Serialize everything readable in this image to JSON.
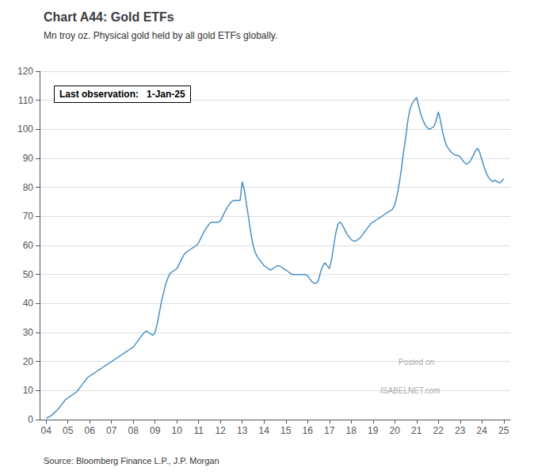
{
  "chart_data": {
    "type": "line",
    "title": "Chart A44: Gold ETFs",
    "subtitle": "Mn troy oz. Physical gold held by all gold ETFs globally.",
    "annotation": "Last observation:   1-Jan-25",
    "source": "Source: Bloomberg Finance L.P., J.P. Morgan",
    "watermark": [
      "Posted on",
      "ISABELNET.com"
    ],
    "color": "#4a90c4",
    "grid": true,
    "xlim": [
      2003.7,
      2025.3
    ],
    "xticks": [
      {
        "value": 2004,
        "label": "04"
      },
      {
        "value": 2005,
        "label": "05"
      },
      {
        "value": 2006,
        "label": "06"
      },
      {
        "value": 2007,
        "label": "07"
      },
      {
        "value": 2008,
        "label": "08"
      },
      {
        "value": 2009,
        "label": "09"
      },
      {
        "value": 2010,
        "label": "10"
      },
      {
        "value": 2011,
        "label": "11"
      },
      {
        "value": 2012,
        "label": "12"
      },
      {
        "value": 2013,
        "label": "13"
      },
      {
        "value": 2014,
        "label": "14"
      },
      {
        "value": 2015,
        "label": "15"
      },
      {
        "value": 2016,
        "label": "16"
      },
      {
        "value": 2017,
        "label": "17"
      },
      {
        "value": 2018,
        "label": "18"
      },
      {
        "value": 2019,
        "label": "19"
      },
      {
        "value": 2020,
        "label": "20"
      },
      {
        "value": 2021,
        "label": "21"
      },
      {
        "value": 2022,
        "label": "22"
      },
      {
        "value": 2023,
        "label": "23"
      },
      {
        "value": 2024,
        "label": "24"
      },
      {
        "value": 2025,
        "label": "25"
      }
    ],
    "ylim": [
      0,
      120
    ],
    "yticks": [
      0,
      10,
      20,
      30,
      40,
      50,
      60,
      70,
      80,
      90,
      100,
      110,
      120
    ],
    "x": [
      2004.0,
      2004.1,
      2004.2,
      2004.3,
      2004.4,
      2004.5,
      2004.6,
      2004.7,
      2004.8,
      2004.9,
      2005.0,
      2005.1,
      2005.2,
      2005.3,
      2005.4,
      2005.5,
      2005.6,
      2005.7,
      2005.8,
      2005.9,
      2006.0,
      2006.1,
      2006.2,
      2006.3,
      2006.4,
      2006.5,
      2006.6,
      2006.7,
      2006.8,
      2006.9,
      2007.0,
      2007.1,
      2007.2,
      2007.3,
      2007.4,
      2007.5,
      2007.6,
      2007.7,
      2007.8,
      2007.9,
      2008.0,
      2008.1,
      2008.2,
      2008.3,
      2008.4,
      2008.5,
      2008.6,
      2008.7,
      2008.8,
      2008.9,
      2009.0,
      2009.1,
      2009.2,
      2009.3,
      2009.4,
      2009.5,
      2009.6,
      2009.7,
      2009.8,
      2009.9,
      2010.0,
      2010.1,
      2010.2,
      2010.3,
      2010.4,
      2010.5,
      2010.6,
      2010.7,
      2010.8,
      2010.9,
      2011.0,
      2011.1,
      2011.2,
      2011.3,
      2011.4,
      2011.5,
      2011.6,
      2011.7,
      2011.8,
      2011.9,
      2012.0,
      2012.1,
      2012.2,
      2012.3,
      2012.4,
      2012.5,
      2012.6,
      2012.7,
      2012.8,
      2012.9,
      2013.0,
      2013.1,
      2013.2,
      2013.3,
      2013.4,
      2013.5,
      2013.6,
      2013.7,
      2013.8,
      2013.9,
      2014.0,
      2014.1,
      2014.2,
      2014.3,
      2014.4,
      2014.5,
      2014.6,
      2014.7,
      2014.8,
      2014.9,
      2015.0,
      2015.1,
      2015.2,
      2015.3,
      2015.4,
      2015.5,
      2015.6,
      2015.7,
      2015.8,
      2015.9,
      2016.0,
      2016.1,
      2016.2,
      2016.3,
      2016.4,
      2016.5,
      2016.6,
      2016.7,
      2016.8,
      2016.9,
      2017.0,
      2017.1,
      2017.2,
      2017.3,
      2017.4,
      2017.5,
      2017.6,
      2017.7,
      2017.8,
      2017.9,
      2018.0,
      2018.1,
      2018.2,
      2018.3,
      2018.4,
      2018.5,
      2018.6,
      2018.7,
      2018.8,
      2018.9,
      2019.0,
      2019.1,
      2019.2,
      2019.3,
      2019.4,
      2019.5,
      2019.6,
      2019.7,
      2019.8,
      2019.9,
      2020.0,
      2020.1,
      2020.2,
      2020.3,
      2020.4,
      2020.5,
      2020.6,
      2020.7,
      2020.8,
      2020.9,
      2021.0,
      2021.1,
      2021.2,
      2021.3,
      2021.4,
      2021.5,
      2021.6,
      2021.7,
      2021.8,
      2021.9,
      2022.0,
      2022.1,
      2022.2,
      2022.3,
      2022.4,
      2022.5,
      2022.6,
      2022.7,
      2022.8,
      2022.9,
      2023.0,
      2023.1,
      2023.2,
      2023.3,
      2023.4,
      2023.5,
      2023.6,
      2023.7,
      2023.8,
      2023.9,
      2024.0,
      2024.1,
      2024.2,
      2024.3,
      2024.4,
      2024.5,
      2024.6,
      2024.7,
      2024.8,
      2024.9,
      2025.0
    ],
    "values": [
      0.5,
      0.8,
      1.2,
      1.8,
      2.5,
      3.2,
      4.0,
      5.0,
      6.0,
      7.0,
      7.5,
      8.0,
      8.5,
      9.0,
      9.5,
      10.5,
      11.5,
      12.5,
      13.5,
      14.5,
      15.0,
      15.5,
      16.0,
      16.5,
      17.0,
      17.5,
      18.0,
      18.5,
      19.0,
      19.5,
      20.0,
      20.5,
      21.0,
      21.5,
      22.0,
      22.5,
      23.0,
      23.5,
      24.0,
      24.5,
      25.0,
      26.0,
      27.0,
      28.0,
      29.0,
      30.0,
      30.5,
      30.0,
      29.5,
      29.0,
      30.0,
      33.0,
      37.0,
      41.0,
      44.0,
      47.0,
      49.0,
      50.5,
      51.0,
      51.5,
      52.0,
      53.5,
      55.0,
      56.5,
      57.5,
      58.0,
      58.5,
      59.0,
      59.5,
      60.0,
      61.0,
      62.5,
      64.0,
      65.5,
      66.5,
      67.5,
      68.0,
      68.0,
      68.0,
      68.0,
      68.5,
      70.0,
      71.5,
      73.0,
      74.0,
      75.0,
      75.5,
      75.5,
      75.5,
      75.5,
      82.0,
      79.0,
      74.0,
      69.0,
      64.0,
      60.0,
      57.5,
      56.0,
      55.0,
      54.0,
      53.0,
      52.5,
      52.0,
      51.5,
      52.0,
      52.5,
      53.0,
      53.0,
      52.5,
      52.0,
      51.5,
      51.0,
      50.5,
      50.0,
      50.0,
      50.0,
      50.0,
      50.0,
      50.0,
      50.0,
      49.5,
      48.5,
      47.5,
      47.0,
      47.0,
      48.0,
      51.0,
      53.0,
      54.0,
      53.0,
      52.0,
      55.0,
      60.0,
      64.5,
      67.5,
      68.0,
      67.0,
      65.5,
      64.0,
      63.0,
      62.0,
      61.5,
      61.5,
      62.0,
      62.5,
      63.5,
      64.5,
      65.5,
      66.5,
      67.5,
      68.0,
      68.5,
      69.0,
      69.5,
      70.0,
      70.5,
      71.0,
      71.5,
      72.0,
      72.5,
      74.0,
      77.0,
      81.0,
      86.0,
      92.0,
      97.0,
      103.0,
      107.0,
      109.0,
      110.0,
      111.0,
      108.0,
      105.0,
      103.0,
      101.5,
      100.5,
      100.0,
      100.5,
      101.0,
      103.0,
      106.0,
      103.0,
      99.0,
      96.0,
      94.0,
      93.0,
      92.0,
      91.5,
      91.0,
      91.0,
      90.5,
      89.5,
      88.5,
      88.0,
      88.5,
      89.5,
      91.0,
      92.5,
      93.5,
      92.0,
      89.5,
      87.0,
      85.0,
      83.5,
      82.5,
      82.0,
      82.5,
      82.0,
      81.5,
      82.0,
      83.0
    ]
  }
}
